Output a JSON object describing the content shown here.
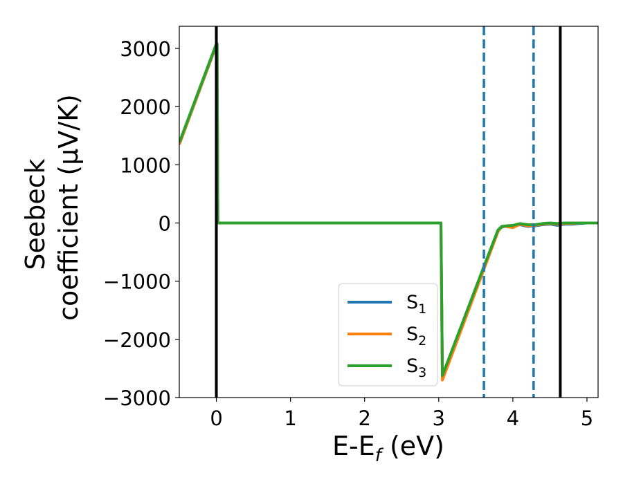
{
  "chart_data": {
    "type": "line",
    "xlabel": "E-E_f (eV)",
    "xlabel_parts": {
      "base": "E-E",
      "sub": "f",
      "tail": " (eV)"
    },
    "ylabel_lines": [
      "Seebeck",
      "coefficient  (μV/K)"
    ],
    "xlim": [
      -0.5,
      5.15
    ],
    "ylim": [
      -3000,
      3380
    ],
    "xticks": [
      0,
      1,
      2,
      3,
      4,
      5
    ],
    "yticks": [
      -3000,
      -2000,
      -1000,
      0,
      1000,
      2000,
      3000
    ],
    "ytick_labels": [
      "−3000",
      "−2000",
      "−1000",
      "0",
      "1000",
      "2000",
      "3000"
    ],
    "grid": false,
    "legend_position": "lower-center-right",
    "series": [
      {
        "name": "S1",
        "label_base": "S",
        "label_sub": "1",
        "color": "#1f77b4",
        "x": [
          -0.5,
          0.0,
          0.01,
          0.02,
          3.02,
          3.03,
          3.05,
          3.6,
          3.8,
          3.85,
          3.9,
          4.0,
          4.1,
          4.2,
          4.3,
          4.4,
          4.5,
          4.6,
          4.7,
          4.8,
          4.9,
          5.0,
          5.15
        ],
        "y": [
          1350,
          3050,
          3050,
          0,
          0,
          0,
          -2650,
          -800,
          -140,
          -70,
          -60,
          -50,
          -30,
          -60,
          -50,
          -30,
          -20,
          -40,
          -20,
          -20,
          -10,
          0,
          0
        ]
      },
      {
        "name": "S2",
        "label_base": "S",
        "label_sub": "2",
        "color": "#ff7f0e",
        "x": [
          -0.5,
          0.0,
          0.01,
          0.02,
          3.02,
          3.03,
          3.05,
          3.6,
          3.8,
          3.85,
          3.9,
          4.0,
          4.1,
          4.2,
          4.3,
          4.4,
          4.5,
          4.6,
          4.7,
          4.8,
          4.9,
          5.0,
          5.15
        ],
        "y": [
          1350,
          3060,
          3060,
          0,
          0,
          0,
          -2700,
          -830,
          -150,
          -60,
          -60,
          -80,
          -20,
          -50,
          -40,
          -20,
          -10,
          -20,
          -10,
          -10,
          0,
          0,
          0
        ]
      },
      {
        "name": "S3",
        "label_base": "S",
        "label_sub": "3",
        "color": "#2ca02c",
        "x": [
          -0.5,
          0.0,
          0.01,
          0.02,
          3.02,
          3.03,
          3.05,
          3.6,
          3.8,
          3.85,
          3.9,
          4.0,
          4.1,
          4.2,
          4.3,
          4.4,
          4.5,
          4.6,
          4.7,
          4.8,
          4.9,
          5.0,
          5.15
        ],
        "y": [
          1380,
          3080,
          3080,
          0,
          0,
          0,
          -2620,
          -780,
          -120,
          -60,
          -50,
          -40,
          -10,
          -30,
          -30,
          -10,
          0,
          -10,
          0,
          0,
          0,
          0,
          0
        ]
      }
    ],
    "vlines": [
      {
        "x": 0.0,
        "color": "#000000",
        "style": "solid"
      },
      {
        "x": 3.61,
        "color": "#1f77b4",
        "style": "dashed"
      },
      {
        "x": 4.28,
        "color": "#1f77b4",
        "style": "dashed"
      },
      {
        "x": 4.64,
        "color": "#000000",
        "style": "solid"
      }
    ]
  }
}
